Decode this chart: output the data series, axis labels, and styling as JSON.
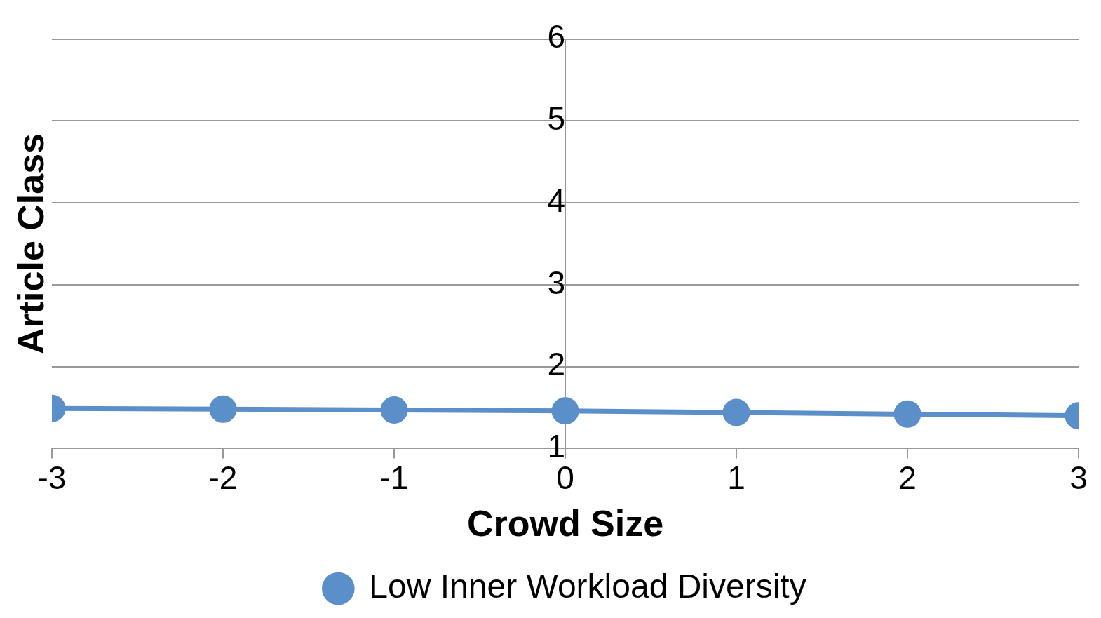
{
  "chart_data": {
    "type": "line",
    "xlabel": "Crowd Size",
    "ylabel": "Article Class",
    "x": [
      -3,
      -2,
      -1,
      0,
      1,
      2,
      3
    ],
    "series": [
      {
        "name": "Low Inner Workload Diversity",
        "color": "#5b8fc9",
        "values": [
          1.49,
          1.48,
          1.47,
          1.46,
          1.44,
          1.42,
          1.4
        ]
      }
    ],
    "xlim": [
      -3,
      3
    ],
    "xticks": [
      -3,
      -2,
      -1,
      0,
      1,
      2,
      3
    ],
    "ylim": [
      1,
      6
    ],
    "yticks": [
      1,
      2,
      3,
      4,
      5,
      6
    ],
    "grid": "y",
    "legend": "bottom",
    "marker": "circle",
    "line_style": "solid"
  }
}
